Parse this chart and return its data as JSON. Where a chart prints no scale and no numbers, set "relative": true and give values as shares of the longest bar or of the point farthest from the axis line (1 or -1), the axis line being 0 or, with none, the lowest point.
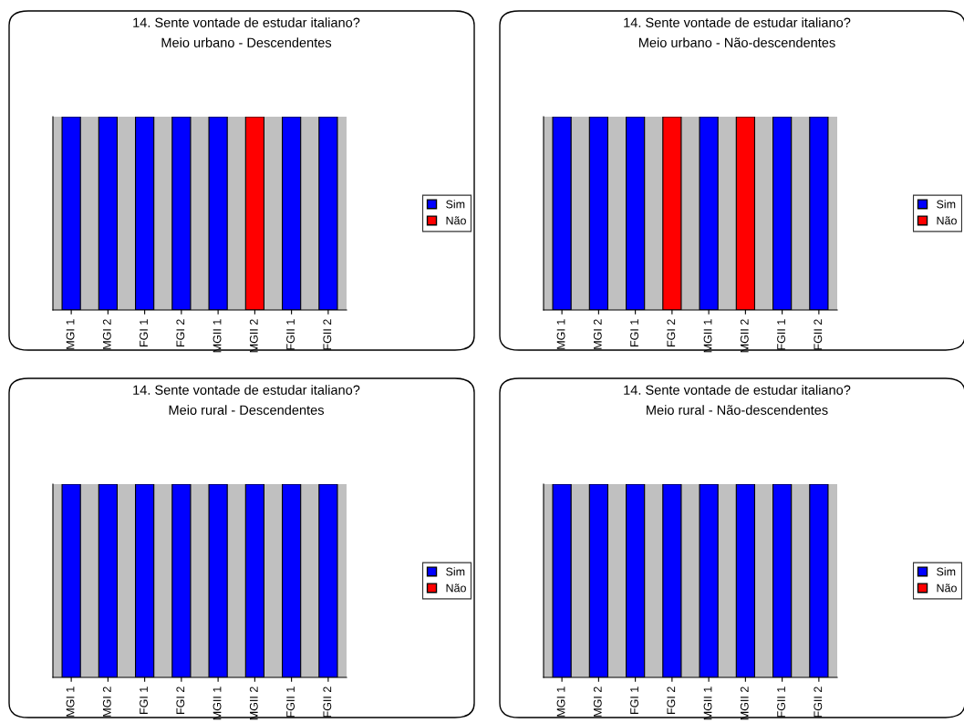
{
  "chart_data": [
    {
      "type": "bar",
      "title": "14. Sente vontade de estudar italiano?",
      "subtitle": "Meio urbano - Descendentes",
      "categories": [
        "MGI 1",
        "MGI 2",
        "FGI 1",
        "FGI 2",
        "MGII 1",
        "MGII 2",
        "FGII 1",
        "FGII 2"
      ],
      "relative": true,
      "legend": "right",
      "series": [
        {
          "name": "Sim",
          "color": "#0000ff",
          "values": [
            1,
            1,
            1,
            1,
            1,
            null,
            1,
            1
          ]
        },
        {
          "name": "Não",
          "color": "#ff0000",
          "values": [
            null,
            null,
            null,
            null,
            null,
            1,
            null,
            null
          ]
        }
      ]
    },
    {
      "type": "bar",
      "title": "14. Sente vontade de estudar italiano?",
      "subtitle": "Meio urbano - Não-descendentes",
      "categories": [
        "MGI 1",
        "MGI 2",
        "FGI 1",
        "FGI 2",
        "MGII 1",
        "MGII 2",
        "FGII 1",
        "FGII 2"
      ],
      "relative": true,
      "legend": "right",
      "series": [
        {
          "name": "Sim",
          "color": "#0000ff",
          "values": [
            1,
            1,
            1,
            null,
            1,
            null,
            1,
            1
          ]
        },
        {
          "name": "Não",
          "color": "#ff0000",
          "values": [
            null,
            null,
            null,
            1,
            null,
            1,
            null,
            null
          ]
        }
      ]
    },
    {
      "type": "bar",
      "title": "14. Sente vontade de estudar italiano?",
      "subtitle": "Meio rural - Descendentes",
      "categories": [
        "MGI 1",
        "MGI 2",
        "FGI 1",
        "FGI 2",
        "MGII 1",
        "MGII 2",
        "FGII 1",
        "FGII 2"
      ],
      "relative": true,
      "legend": "right",
      "series": [
        {
          "name": "Sim",
          "color": "#0000ff",
          "values": [
            1,
            1,
            1,
            1,
            1,
            1,
            1,
            1
          ]
        },
        {
          "name": "Não",
          "color": "#ff0000",
          "values": [
            null,
            null,
            null,
            null,
            null,
            null,
            null,
            null
          ]
        }
      ]
    },
    {
      "type": "bar",
      "title": "14. Sente vontade de estudar italiano?",
      "subtitle": "Meio rural - Não-descendentes",
      "categories": [
        "MGI 1",
        "MGI 2",
        "FGI 1",
        "FGI 2",
        "MGII 1",
        "MGII 2",
        "FGII 1",
        "FGII 2"
      ],
      "relative": true,
      "legend": "right",
      "series": [
        {
          "name": "Sim",
          "color": "#0000ff",
          "values": [
            1,
            1,
            1,
            1,
            1,
            1,
            1,
            1
          ]
        },
        {
          "name": "Não",
          "color": "#ff0000",
          "values": [
            null,
            null,
            null,
            null,
            null,
            null,
            null,
            null
          ]
        }
      ]
    }
  ]
}
